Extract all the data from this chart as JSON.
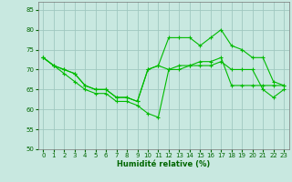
{
  "title": "",
  "xlabel": "Humidité relative (%)",
  "ylabel": "",
  "bg_color": "#c8e8e0",
  "grid_color": "#a0c8c0",
  "line_color": "#00bb00",
  "marker_color": "#00bb00",
  "xlim": [
    -0.5,
    23.5
  ],
  "ylim": [
    50,
    87
  ],
  "yticks": [
    50,
    55,
    60,
    65,
    70,
    75,
    80,
    85
  ],
  "xticks": [
    0,
    1,
    2,
    3,
    4,
    5,
    6,
    7,
    8,
    9,
    10,
    11,
    12,
    13,
    14,
    15,
    16,
    17,
    18,
    19,
    20,
    21,
    22,
    23
  ],
  "series": [
    {
      "x": [
        0,
        1,
        2,
        3,
        4,
        5,
        6,
        7,
        8,
        9,
        10,
        11,
        12,
        13,
        14,
        15,
        16,
        17,
        18,
        19,
        20,
        21,
        22,
        23
      ],
      "y": [
        73,
        71,
        69,
        67,
        65,
        64,
        64,
        62,
        62,
        61,
        59,
        58,
        70,
        70,
        71,
        71,
        71,
        72,
        70,
        70,
        70,
        65,
        63,
        65
      ]
    },
    {
      "x": [
        0,
        1,
        2,
        3,
        4,
        5,
        6,
        7,
        8,
        9,
        10,
        11,
        12,
        13,
        14,
        15,
        16,
        17,
        18,
        19,
        20,
        21,
        22,
        23
      ],
      "y": [
        73,
        71,
        70,
        69,
        66,
        65,
        65,
        63,
        63,
        62,
        70,
        71,
        78,
        78,
        78,
        76,
        78,
        80,
        76,
        75,
        73,
        73,
        67,
        66
      ]
    },
    {
      "x": [
        0,
        1,
        2,
        3,
        4,
        5,
        6,
        7,
        8,
        9,
        10,
        11,
        12,
        13,
        14,
        15,
        16,
        17,
        18,
        19,
        20,
        21,
        22,
        23
      ],
      "y": [
        73,
        71,
        70,
        69,
        66,
        65,
        65,
        63,
        63,
        62,
        70,
        71,
        70,
        71,
        71,
        72,
        72,
        73,
        66,
        66,
        66,
        66,
        66,
        66
      ]
    }
  ]
}
